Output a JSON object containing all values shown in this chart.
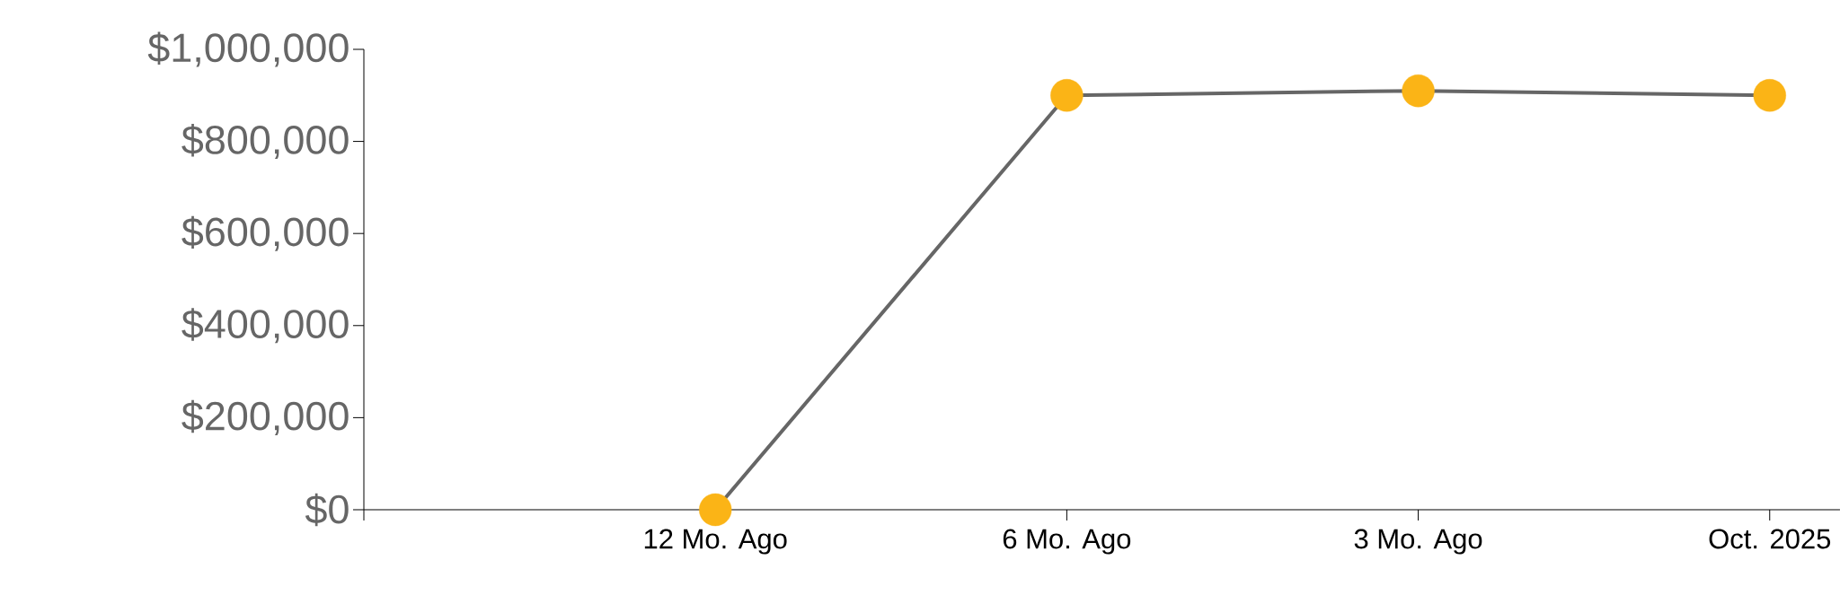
{
  "chart_data": {
    "type": "line",
    "categories": [
      null,
      "12 Mo. Ago",
      "6 Mo. Ago",
      "3 Mo. Ago",
      "Oct. 2025"
    ],
    "series": [
      {
        "color": "#666666",
        "colors": [
          null,
          "#fbb416",
          "#fbb416",
          "#fbb416",
          "#fbb416"
        ],
        "values": [
          null,
          0,
          900000,
          910000,
          900000
        ]
      }
    ],
    "marker": "circle",
    "ylim": [
      0,
      1000000
    ],
    "yticks": [
      {
        "value": 0,
        "label": "$0"
      },
      {
        "value": 200000,
        "label": "$200,000"
      },
      {
        "value": 400000,
        "label": "$400,000"
      },
      {
        "value": 600000,
        "label": "$600,000"
      },
      {
        "value": 800000,
        "label": "$800,000"
      },
      {
        "value": 1000000,
        "label": "$1,000,000"
      }
    ],
    "grid": false
  }
}
